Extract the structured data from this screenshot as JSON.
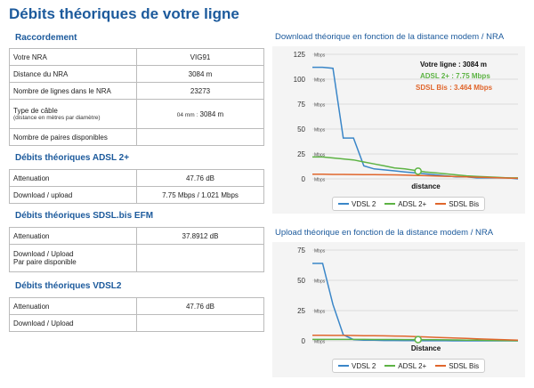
{
  "page": {
    "title": "Débits théoriques de votre ligne"
  },
  "raccordement": {
    "title": "Raccordement",
    "rows": [
      {
        "label": "Votre NRA",
        "value": "VIG91"
      },
      {
        "label": "Distance du NRA",
        "value": "3084 m"
      },
      {
        "label": "Nombre de lignes dans le NRA",
        "value": "23273"
      },
      {
        "label": "Type de câble",
        "sublabel": "(distance en mètres par diamètre)",
        "value_prefix": "04 mm :",
        "value": "3084 m"
      },
      {
        "label": "Nombre de paires disponibles",
        "value": ""
      }
    ]
  },
  "adsl": {
    "title": "Débits théoriques ADSL 2+",
    "rows": [
      {
        "label": "Attenuation",
        "value": "47.76 dB"
      },
      {
        "label": "Download / upload",
        "value": "7.75 Mbps / 1.021 Mbps"
      }
    ]
  },
  "sdsl": {
    "title": "Débits théoriques SDSL.bis EFM",
    "rows": [
      {
        "label": "Attenuation",
        "value": "37.8912 dB"
      },
      {
        "label": "Download / Upload",
        "sublabel": "Par paire disponible",
        "value": ""
      }
    ]
  },
  "vdsl": {
    "title": "Débits théoriques VDSL2",
    "rows": [
      {
        "label": "Attenuation",
        "value": "47.76 dB"
      },
      {
        "label": "Download / Upload",
        "value": ""
      }
    ]
  },
  "download_chart": {
    "title": "Download théorique en fonction de la distance modem / NRA",
    "annotation": {
      "ligne": "Votre ligne : 3084 m",
      "adsl": "ADSL 2+ : 7.75 Mbps",
      "sdsl": "SDSL Bis : 3.464 Mbps"
    }
  },
  "upload_chart": {
    "title": "Upload théorique en fonction de la distance modem / NRA"
  },
  "colors": {
    "vdsl": "#3a86c8",
    "adsl": "#5db344",
    "sdsl": "#e0662c",
    "title": "#1c5a9c"
  },
  "chart_data": [
    {
      "type": "line",
      "title": "Download théorique en fonction de la distance modem / NRA",
      "xlabel": "distance",
      "ylabel": "Mbps",
      "unit": "Mbps",
      "ylim": [
        0,
        125
      ],
      "yticks": [
        0,
        25,
        50,
        75,
        100,
        125
      ],
      "x": [
        0,
        300,
        600,
        900,
        1200,
        1500,
        1800,
        2100,
        2400,
        2700,
        3000,
        3300,
        3600,
        3900,
        4200,
        4500,
        4800,
        5100,
        5400,
        5700,
        6000
      ],
      "series": [
        {
          "name": "VDSL 2",
          "values": [
            112,
            112,
            111,
            41,
            41,
            13,
            10,
            9,
            8,
            7,
            6,
            5,
            4,
            3,
            2,
            2,
            1,
            1,
            1,
            1,
            0
          ]
        },
        {
          "name": "ADSL 2+",
          "values": [
            22,
            22,
            21,
            20,
            19,
            17,
            15,
            13,
            11,
            10,
            8.5,
            7,
            6,
            5,
            4,
            3,
            2.5,
            2,
            1.5,
            1,
            1
          ]
        },
        {
          "name": "SDSL Bis",
          "values": [
            4.6,
            4.6,
            4.5,
            4.5,
            4.4,
            4.3,
            4.2,
            4.1,
            4.0,
            3.8,
            3.5,
            3.2,
            2.9,
            2.6,
            2.3,
            2.0,
            1.7,
            1.4,
            1.1,
            0.8,
            0.5
          ]
        }
      ],
      "marker": {
        "series": "ADSL 2+",
        "x": 3084,
        "y": 7.75
      },
      "legend": [
        "VDSL 2",
        "ADSL 2+",
        "SDSL Bis"
      ]
    },
    {
      "type": "line",
      "title": "Upload théorique en fonction de la distance modem / NRA",
      "xlabel": "Distance",
      "ylabel": "Mbps",
      "unit": "Mbps",
      "ylim": [
        0,
        75
      ],
      "yticks": [
        0,
        25,
        50,
        75
      ],
      "x": [
        0,
        300,
        600,
        900,
        1200,
        1500,
        1800,
        2100,
        2400,
        2700,
        3000,
        3300,
        3600,
        3900,
        4200,
        4500,
        4800,
        5100,
        5400,
        5700,
        6000
      ],
      "series": [
        {
          "name": "VDSL 2",
          "values": [
            64,
            64,
            30,
            5,
            1,
            0.5,
            0.5,
            0.3,
            0.3,
            0.2,
            0.2,
            0.1,
            0.1,
            0.1,
            0,
            0,
            0,
            0,
            0,
            0,
            0
          ]
        },
        {
          "name": "ADSL 2+",
          "values": [
            1.2,
            1.2,
            1.2,
            1.2,
            1.2,
            1.2,
            1.1,
            1.1,
            1.1,
            1.05,
            1.02,
            0.95,
            0.9,
            0.8,
            0.7,
            0.6,
            0.5,
            0.4,
            0.3,
            0.2,
            0.1
          ]
        },
        {
          "name": "SDSL Bis",
          "values": [
            4.6,
            4.6,
            4.5,
            4.5,
            4.4,
            4.3,
            4.2,
            4.1,
            4.0,
            3.8,
            3.5,
            3.2,
            2.9,
            2.6,
            2.3,
            2.0,
            1.7,
            1.4,
            1.1,
            0.8,
            0.5
          ]
        }
      ],
      "marker": {
        "series": "ADSL 2+",
        "x": 3084,
        "y": 1.021
      },
      "legend": [
        "VDSL 2",
        "ADSL 2+",
        "SDSL Bis"
      ]
    }
  ]
}
